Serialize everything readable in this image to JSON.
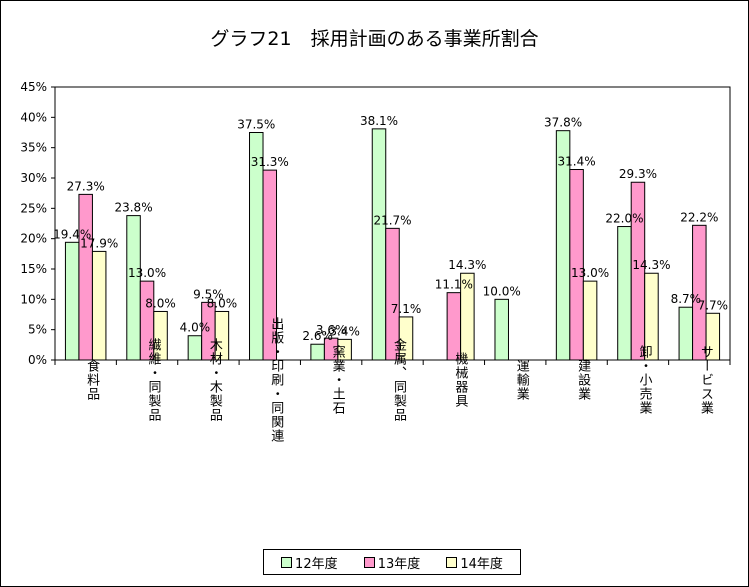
{
  "title": "グラフ21　採用計画のある事業所割合",
  "chart_data": {
    "type": "bar",
    "title": "グラフ21　採用計画のある事業所割合",
    "xlabel": "",
    "ylabel": "",
    "ylim": [
      0,
      45
    ],
    "yticks": [
      "0%",
      "5%",
      "10%",
      "15%",
      "20%",
      "25%",
      "30%",
      "35%",
      "40%",
      "45%"
    ],
    "grid": false,
    "legend_position": "bottom",
    "categories": [
      "食料品",
      "繊維・同製品",
      "木材・木製品",
      "出版・印刷・同関連",
      "窯業・土石",
      "金属、同製品",
      "機械器具",
      "運輸業",
      "建設業",
      "卸・小売業",
      "サービス業"
    ],
    "series": [
      {
        "name": "12年度",
        "color": "#ccffcc",
        "values": [
          19.4,
          23.8,
          4.0,
          37.5,
          2.6,
          38.1,
          null,
          10.0,
          37.8,
          22.0,
          8.7
        ],
        "labels": [
          "19.4%",
          "23.8%",
          "4.0%",
          "37.5%",
          "2.6%",
          "38.1%",
          "",
          "10.0%",
          "37.8%",
          "22.0%",
          "8.7%"
        ]
      },
      {
        "name": "13年度",
        "color": "#ff99cc",
        "values": [
          27.3,
          13.0,
          9.5,
          31.3,
          3.6,
          21.7,
          11.1,
          null,
          31.4,
          29.3,
          22.2
        ],
        "labels": [
          "27.3%",
          "13.0%",
          "9.5%",
          "31.3%",
          "3.6%",
          "21.7%",
          "11.1%",
          "",
          "31.4%",
          "29.3%",
          "22.2%"
        ]
      },
      {
        "name": "14年度",
        "color": "#ffffcc",
        "values": [
          17.9,
          8.0,
          8.0,
          null,
          3.4,
          7.1,
          14.3,
          null,
          13.0,
          14.3,
          7.7
        ],
        "labels": [
          "17.9%",
          "8.0%",
          "8.0%",
          "",
          "3.4%",
          "7.1%",
          "14.3%",
          "",
          "13.0%",
          "14.3%",
          "7.7%"
        ]
      }
    ]
  }
}
